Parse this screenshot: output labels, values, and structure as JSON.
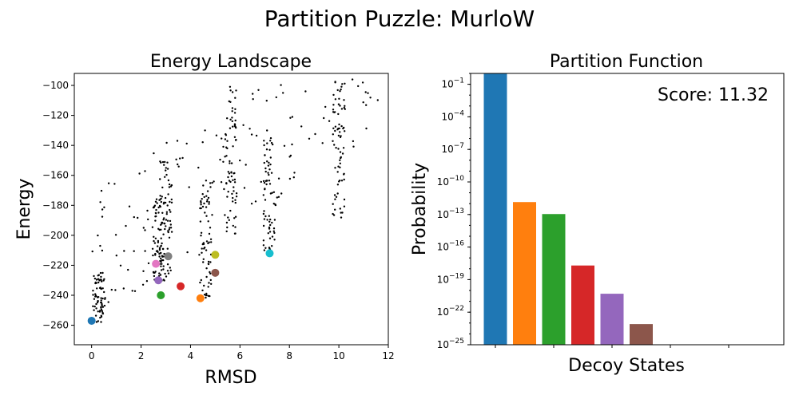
{
  "figure_title": "Partition Puzzle: MurloW",
  "chart_data": [
    {
      "type": "scatter",
      "title": "Energy Landscape",
      "xlabel": "RMSD",
      "ylabel": "Energy",
      "xlim": [
        -0.7,
        12
      ],
      "ylim": [
        -273,
        -92
      ],
      "xticks": [
        0,
        2,
        4,
        6,
        8,
        10,
        12
      ],
      "yticks": [
        -260,
        -240,
        -220,
        -200,
        -180,
        -160,
        -140,
        -120,
        -100
      ],
      "grid": false,
      "background_points": {
        "color": "#000000",
        "description_columns": [
          {
            "x_center": 0.3,
            "y_range": [
              -258,
              -225
            ]
          },
          {
            "x_center": 2.7,
            "y_range": [
              -232,
              -175
            ]
          },
          {
            "x_center": 3.0,
            "y_range": [
              -230,
              -150
            ]
          },
          {
            "x_center": 4.6,
            "y_range": [
              -242,
              -165
            ]
          },
          {
            "x_center": 5.6,
            "y_range": [
              -200,
              -100
            ]
          },
          {
            "x_center": 7.2,
            "y_range": [
              -212,
              -130
            ]
          },
          {
            "x_center": 10.0,
            "y_range": [
              -190,
              -95
            ]
          }
        ]
      },
      "highlighted_points": [
        {
          "x": 0.0,
          "y": -257,
          "color": "#1f77b4"
        },
        {
          "x": 4.4,
          "y": -242,
          "color": "#ff7f0e"
        },
        {
          "x": 2.8,
          "y": -240,
          "color": "#2ca02c"
        },
        {
          "x": 3.6,
          "y": -234,
          "color": "#d62728"
        },
        {
          "x": 2.7,
          "y": -230,
          "color": "#9467bd"
        },
        {
          "x": 5.0,
          "y": -225,
          "color": "#8c564b"
        },
        {
          "x": 2.6,
          "y": -219,
          "color": "#e377c2"
        },
        {
          "x": 3.1,
          "y": -214,
          "color": "#7f7f7f"
        },
        {
          "x": 5.0,
          "y": -213,
          "color": "#bcbd22"
        },
        {
          "x": 7.2,
          "y": -212,
          "color": "#17becf"
        }
      ]
    },
    {
      "type": "bar",
      "title": "Partition Function",
      "xlabel": "Decoy States",
      "ylabel": "Probability",
      "yscale": "log",
      "ylim_exp": [
        -25,
        0
      ],
      "ytick_exponents": [
        -25,
        -22,
        -19,
        -16,
        -13,
        -10,
        -7,
        -4,
        -1
      ],
      "annotation": "Score: 11.32",
      "bars": [
        {
          "value": 1.0,
          "color": "#1f77b4"
        },
        {
          "value": 1.4e-12,
          "color": "#ff7f0e"
        },
        {
          "value": 1.1e-13,
          "color": "#2ca02c"
        },
        {
          "value": 2e-18,
          "color": "#d62728"
        },
        {
          "value": 5e-21,
          "color": "#9467bd"
        },
        {
          "value": 8e-24,
          "color": "#8c564b"
        },
        {
          "value": 1e-30,
          "color": "#e377c2"
        },
        {
          "value": 1e-30,
          "color": "#7f7f7f"
        },
        {
          "value": 1e-30,
          "color": "#bcbd22"
        },
        {
          "value": 1e-30,
          "color": "#17becf"
        }
      ]
    }
  ]
}
